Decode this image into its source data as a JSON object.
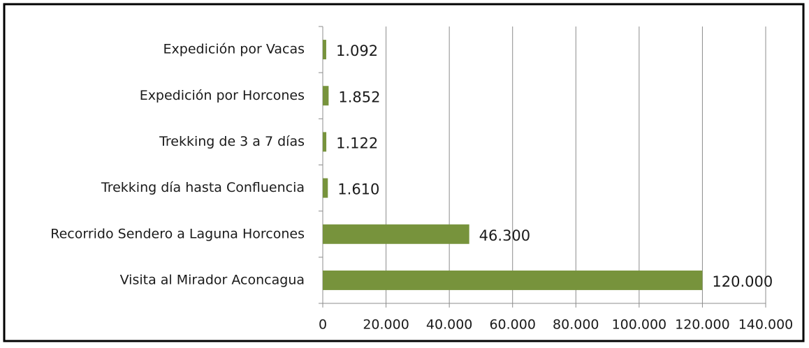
{
  "chart_data": {
    "type": "bar",
    "orientation": "horizontal",
    "categories": [
      "Expedición por Vacas",
      "Expedición por Horcones",
      "Trekking de 3 a 7 días",
      "Trekking día hasta Confluencia",
      "Recorrido Sendero a Laguna Horcones",
      "Visita al Mirador Aconcagua"
    ],
    "values": [
      1092,
      1852,
      1122,
      1610,
      46300,
      120000
    ],
    "value_labels": [
      "1.092",
      "1.852",
      "1.122",
      "1.610",
      "46.300",
      "120.000"
    ],
    "color": "#77933c",
    "xlim": [
      0,
      140000
    ],
    "xticks": [
      0,
      {
        "value": 20000,
        "label": "20.000"
      },
      {
        "value": 40000,
        "label": "40.000"
      },
      {
        "value": 60000,
        "label": "60.000"
      },
      {
        "value": 80000,
        "label": "80.000"
      },
      {
        "value": 100000,
        "label": "100.000"
      },
      {
        "value": 120000,
        "label": "120.000"
      },
      {
        "value": 140000,
        "label": "140.000"
      }
    ],
    "grid": true
  }
}
